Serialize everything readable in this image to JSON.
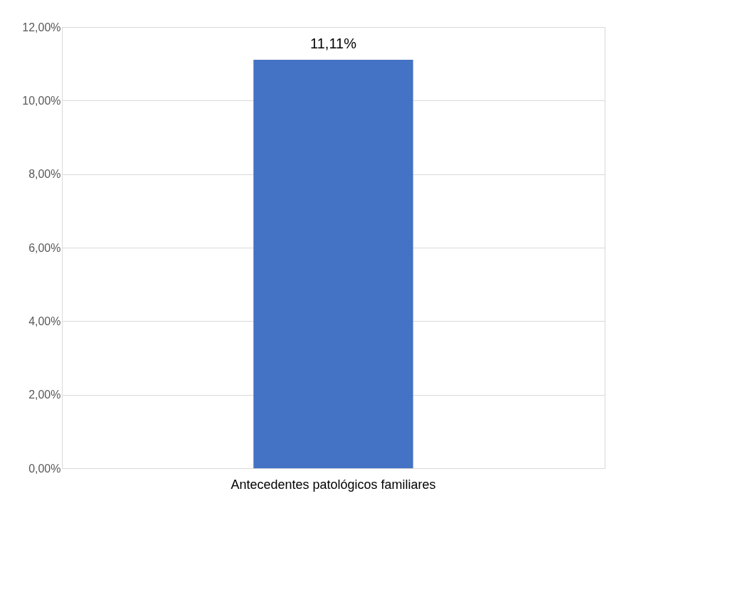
{
  "chart_data": {
    "type": "bar",
    "categories": [
      "Antecedentes patológicos familiares"
    ],
    "values": [
      11.11
    ],
    "value_labels": [
      "11,11%"
    ],
    "color": "#4472c4",
    "ylim": [
      0,
      12
    ],
    "yticks": [
      {
        "value": 0,
        "label": "0,00%"
      },
      {
        "value": 2,
        "label": "2,00%"
      },
      {
        "value": 4,
        "label": "4,00%"
      },
      {
        "value": 6,
        "label": "6,00%"
      },
      {
        "value": 8,
        "label": "8,00%"
      },
      {
        "value": 10,
        "label": "10,00%"
      },
      {
        "value": 12,
        "label": "12,00%"
      }
    ],
    "grid": "y"
  }
}
